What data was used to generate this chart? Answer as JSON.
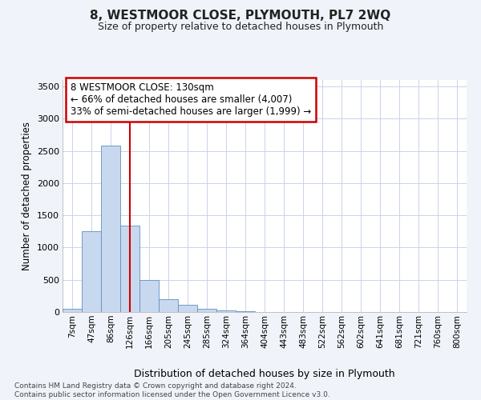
{
  "title": "8, WESTMOOR CLOSE, PLYMOUTH, PL7 2WQ",
  "subtitle": "Size of property relative to detached houses in Plymouth",
  "xlabel": "Distribution of detached houses by size in Plymouth",
  "ylabel": "Number of detached properties",
  "categories": [
    "7sqm",
    "47sqm",
    "86sqm",
    "126sqm",
    "166sqm",
    "205sqm",
    "245sqm",
    "285sqm",
    "324sqm",
    "364sqm",
    "404sqm",
    "443sqm",
    "483sqm",
    "522sqm",
    "562sqm",
    "602sqm",
    "641sqm",
    "681sqm",
    "721sqm",
    "760sqm",
    "800sqm"
  ],
  "values": [
    50,
    1250,
    2580,
    1340,
    495,
    200,
    110,
    55,
    30,
    15,
    5,
    3,
    2,
    0,
    0,
    0,
    0,
    0,
    0,
    0,
    0
  ],
  "bar_color": "#c8d8ee",
  "bar_edge_color": "#6090c0",
  "grid_color": "#c8d4e8",
  "background_color": "#f0f4fa",
  "plot_bg_color": "#ffffff",
  "annotation_text": "8 WESTMOOR CLOSE: 130sqm\n← 66% of detached houses are smaller (4,007)\n33% of semi-detached houses are larger (1,999) →",
  "annotation_box_color": "#ffffff",
  "annotation_edge_color": "#cc0000",
  "red_line_x": 3.0,
  "ylim": [
    0,
    3600
  ],
  "yticks": [
    0,
    500,
    1000,
    1500,
    2000,
    2500,
    3000,
    3500
  ],
  "footnote": "Contains HM Land Registry data © Crown copyright and database right 2024.\nContains public sector information licensed under the Open Government Licence v3.0."
}
